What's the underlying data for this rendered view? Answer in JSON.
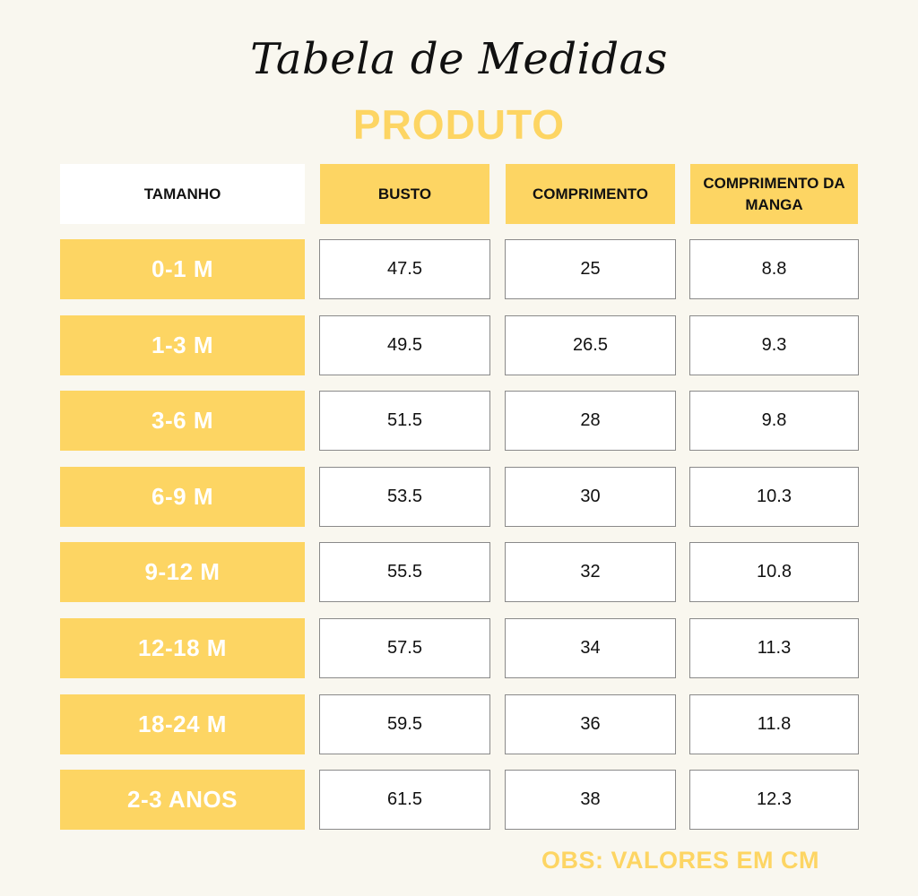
{
  "title": "Tabela de Medidas",
  "subtitle": "PRODUTO",
  "colors": {
    "accent": "#fdd563",
    "background": "#f9f7ef",
    "header_white": "#ffffff",
    "text": "#111111"
  },
  "table": {
    "headers": [
      "TAMANHO",
      "BUSTO",
      "COMPRIMENTO",
      "COMPRIMENTO DA MANGA"
    ],
    "rows": [
      {
        "size": "0-1 M",
        "busto": "47.5",
        "comprimento": "25",
        "manga": "8.8"
      },
      {
        "size": "1-3 M",
        "busto": "49.5",
        "comprimento": "26.5",
        "manga": "9.3"
      },
      {
        "size": "3-6 M",
        "busto": "51.5",
        "comprimento": "28",
        "manga": "9.8"
      },
      {
        "size": "6-9 M",
        "busto": "53.5",
        "comprimento": "30",
        "manga": "10.3"
      },
      {
        "size": "9-12 M",
        "busto": "55.5",
        "comprimento": "32",
        "manga": "10.8"
      },
      {
        "size": "12-18 M",
        "busto": "57.5",
        "comprimento": "34",
        "manga": "11.3"
      },
      {
        "size": "18-24 M",
        "busto": "59.5",
        "comprimento": "36",
        "manga": "11.8"
      },
      {
        "size": "2-3 ANOS",
        "busto": "61.5",
        "comprimento": "38",
        "manga": "12.3"
      }
    ]
  },
  "note": "OBS: VALORES EM CM"
}
